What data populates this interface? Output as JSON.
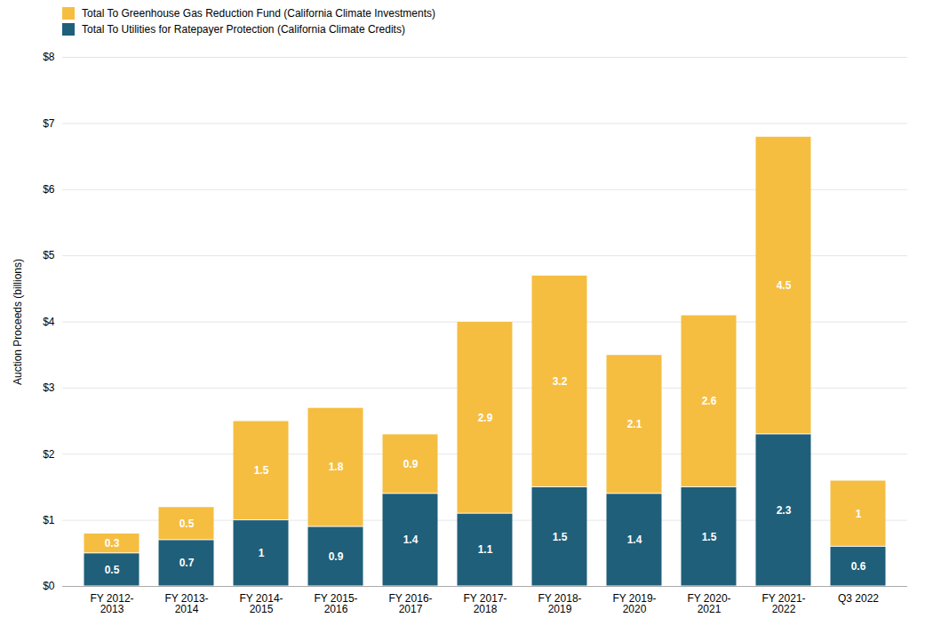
{
  "chart_data": {
    "type": "bar",
    "stacked": true,
    "data_labels": true,
    "grid": true,
    "legend": "upper left",
    "ylabel": "Auction Proceeds (billions)",
    "categories": [
      "FY 2012-\n2013",
      "FY 2013-\n2014",
      "FY 2014-\n2015",
      "FY 2015-\n2016",
      "FY 2016-\n2017",
      "FY 2017-\n2018",
      "FY 2018-\n2019",
      "FY 2019-\n2020",
      "FY 2020-\n2021",
      "FY 2021-\n2022",
      "Q3 2022"
    ],
    "series": [
      {
        "name": "Total To Utilities for Ratepayer Protection (California Climate Credits)",
        "color": "#1F5F7A",
        "values": [
          0.5,
          0.7,
          1.0,
          0.9,
          1.4,
          1.1,
          1.5,
          1.4,
          1.5,
          2.3,
          0.6
        ]
      },
      {
        "name": "Total To Greenhouse Gas Reduction Fund (California Climate Investments)",
        "color": "#F5BE41",
        "values": [
          0.3,
          0.5,
          1.5,
          1.8,
          0.9,
          2.9,
          3.2,
          2.1,
          2.6,
          4.5,
          1.0
        ]
      }
    ],
    "ylim": [
      0,
      8
    ],
    "yticks": [
      {
        "value": 0,
        "label": "$0"
      },
      {
        "value": 1,
        "label": "$1"
      },
      {
        "value": 2,
        "label": "$2"
      },
      {
        "value": 3,
        "label": "$3"
      },
      {
        "value": 4,
        "label": "$4"
      },
      {
        "value": 5,
        "label": "$5"
      },
      {
        "value": 6,
        "label": "$6"
      },
      {
        "value": 7,
        "label": "$7"
      },
      {
        "value": 8,
        "label": "$8"
      }
    ]
  }
}
